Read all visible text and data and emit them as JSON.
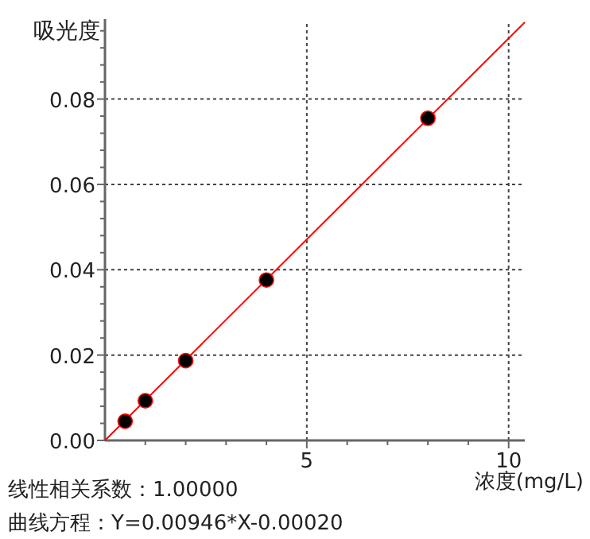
{
  "chart_data": {
    "type": "scatter",
    "xlabel": "浓度(mg/L)",
    "ylabel": "吸光度",
    "xlim": [
      0,
      10.4
    ],
    "ylim": [
      0,
      0.098
    ],
    "xticks": [
      {
        "value": 1,
        "label": null
      },
      {
        "value": 2,
        "label": null
      },
      {
        "value": 3,
        "label": null
      },
      {
        "value": 4,
        "label": null
      },
      5,
      {
        "value": 6,
        "label": null
      },
      {
        "value": 7,
        "label": null
      },
      {
        "value": 8,
        "label": null
      },
      {
        "value": 9,
        "label": null
      },
      10
    ],
    "yticks": [
      {
        "value": 0,
        "label": "0.00"
      },
      {
        "value": 0.004,
        "label": null
      },
      {
        "value": 0.008,
        "label": null
      },
      {
        "value": 0.012,
        "label": null
      },
      {
        "value": 0.016,
        "label": null
      },
      {
        "value": 0.02,
        "label": "0.02"
      },
      {
        "value": 0.024,
        "label": null
      },
      {
        "value": 0.028,
        "label": null
      },
      {
        "value": 0.032,
        "label": null
      },
      {
        "value": 0.036,
        "label": null
      },
      {
        "value": 0.04,
        "label": "0.04"
      },
      {
        "value": 0.044,
        "label": null
      },
      {
        "value": 0.048,
        "label": null
      },
      {
        "value": 0.052,
        "label": null
      },
      {
        "value": 0.056,
        "label": null
      },
      {
        "value": 0.06,
        "label": "0.06"
      },
      {
        "value": 0.064,
        "label": null
      },
      {
        "value": 0.068,
        "label": null
      },
      {
        "value": 0.072,
        "label": null
      },
      {
        "value": 0.076,
        "label": null
      },
      {
        "value": 0.08,
        "label": "0.08"
      },
      {
        "value": 0.084,
        "label": null
      },
      {
        "value": 0.088,
        "label": null
      },
      {
        "value": 0.092,
        "label": null
      },
      {
        "value": 0.096,
        "label": null
      }
    ],
    "grid": true,
    "series": [
      {
        "type": "line",
        "color": "#ff0000",
        "x": [
          0,
          10.4
        ],
        "values": [
          0,
          0.098
        ],
        "marker": "none"
      },
      {
        "color": "#000000",
        "x": [
          0.5,
          1,
          2,
          4,
          8
        ],
        "values": [
          0.0045,
          0.0093,
          0.0187,
          0.0376,
          0.0755
        ],
        "marker": "circle"
      }
    ],
    "annotations": [
      "线性相关系数：1.00000",
      "曲线方程：Y=0.00946*X-0.00020"
    ]
  }
}
